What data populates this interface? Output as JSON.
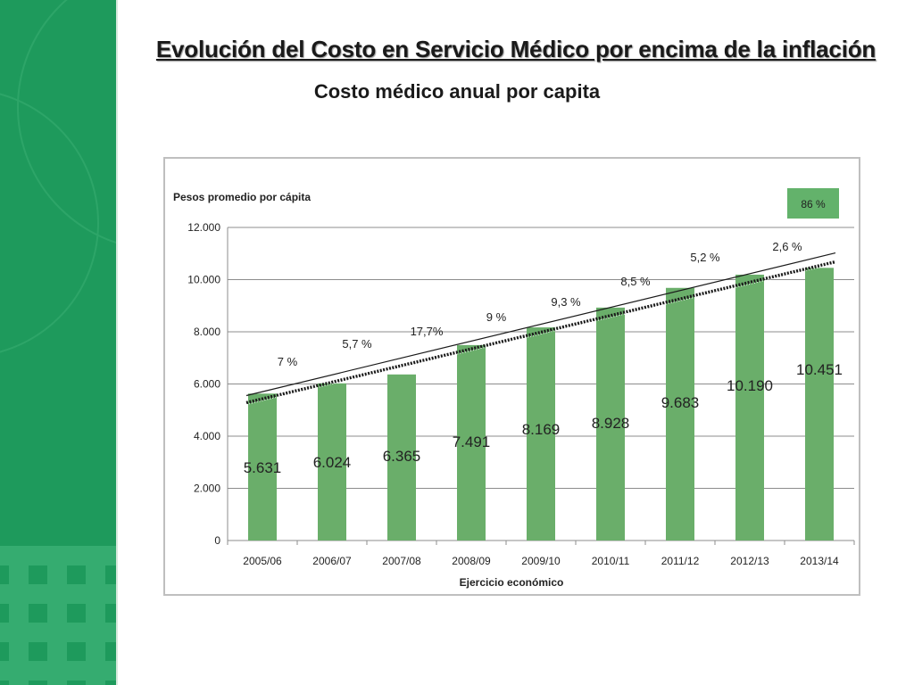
{
  "slide": {
    "title": "Evolución del Costo en Servicio Médico por encima de la inflación",
    "subtitle": "Costo médico anual por capita"
  },
  "colors": {
    "brand_green": "#1e9a5c",
    "bar_green": "#6aae6a",
    "badge_green": "#63b26b"
  },
  "chart_data": {
    "type": "bar",
    "title": "Costo médico anual por capita",
    "ylabel": "Pesos promedio por cápita",
    "xlabel": "Ejercicio económico",
    "ylim": [
      0,
      12000
    ],
    "yticks": [
      0,
      2000,
      4000,
      6000,
      8000,
      10000,
      12000
    ],
    "ytick_labels": [
      "0",
      "2.000",
      "4.000",
      "6.000",
      "8.000",
      "10.000",
      "12.000"
    ],
    "grid": true,
    "categories": [
      "2005/06",
      "2006/07",
      "2007/08",
      "2008/09",
      "2009/10",
      "2010/11",
      "2011/12",
      "2012/13",
      "2013/14"
    ],
    "values": [
      5631,
      6024,
      6365,
      7491,
      8169,
      8928,
      9683,
      10190,
      10451
    ],
    "value_labels": [
      "5.631",
      "6.024",
      "6.365",
      "7.491",
      "8.169",
      "8.928",
      "9.683",
      "10.190",
      "10.451"
    ],
    "growth_labels": [
      "7 %",
      "5,7 %",
      "17,7%",
      "9 %",
      "9,3 %",
      "8,5 %",
      "5,2 %",
      "2,6 %"
    ],
    "total_growth_label": "86 %",
    "trendline": {
      "start": 5350,
      "end": 10750
    }
  }
}
